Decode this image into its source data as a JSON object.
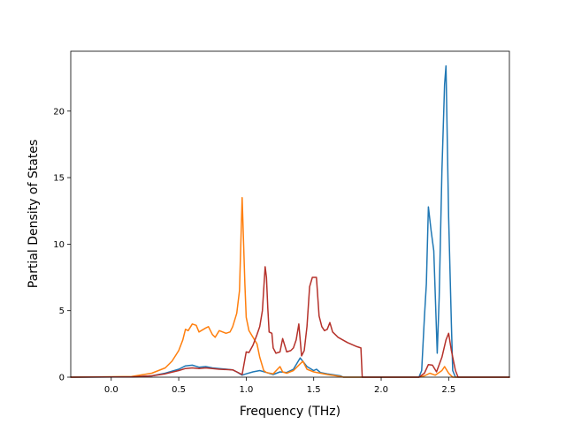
{
  "chart_data": {
    "type": "line",
    "title": "",
    "xlabel": "Frequency (THz)",
    "ylabel": "Partial Density of States",
    "xlim": [
      -0.3,
      2.95
    ],
    "ylim": [
      0,
      24.5
    ],
    "xticks": [
      0.0,
      0.5,
      1.0,
      1.5,
      2.0,
      2.5
    ],
    "xtick_labels": [
      "0.0",
      "0.5",
      "1.0",
      "1.5",
      "2.0",
      "2.5"
    ],
    "yticks": [
      0,
      5,
      10,
      15,
      20
    ],
    "ytick_labels": [
      "0",
      "5",
      "10",
      "15",
      "20"
    ],
    "grid": false,
    "legend": "none",
    "series": [
      {
        "color": "#1f77b4",
        "points": [
          [
            -0.3,
            0
          ],
          [
            0.15,
            0.02
          ],
          [
            0.3,
            0.1
          ],
          [
            0.4,
            0.3
          ],
          [
            0.5,
            0.6
          ],
          [
            0.55,
            0.85
          ],
          [
            0.6,
            0.9
          ],
          [
            0.65,
            0.75
          ],
          [
            0.7,
            0.8
          ],
          [
            0.75,
            0.7
          ],
          [
            0.8,
            0.65
          ],
          [
            0.9,
            0.55
          ],
          [
            0.93,
            0.4
          ],
          [
            0.97,
            0.15
          ],
          [
            1.0,
            0.25
          ],
          [
            1.05,
            0.4
          ],
          [
            1.1,
            0.5
          ],
          [
            1.15,
            0.35
          ],
          [
            1.2,
            0.2
          ],
          [
            1.25,
            0.4
          ],
          [
            1.3,
            0.35
          ],
          [
            1.35,
            0.6
          ],
          [
            1.4,
            1.45
          ],
          [
            1.45,
            0.8
          ],
          [
            1.5,
            0.5
          ],
          [
            1.52,
            0.6
          ],
          [
            1.55,
            0.35
          ],
          [
            1.6,
            0.25
          ],
          [
            1.7,
            0.1
          ],
          [
            1.72,
            0.0
          ],
          [
            2.28,
            0.0
          ],
          [
            2.3,
            0.5
          ],
          [
            2.32,
            4.5
          ],
          [
            2.335,
            7.0
          ],
          [
            2.35,
            12.8
          ],
          [
            2.37,
            11.0
          ],
          [
            2.39,
            9.5
          ],
          [
            2.415,
            1.8
          ],
          [
            2.43,
            6.0
          ],
          [
            2.45,
            15.5
          ],
          [
            2.47,
            22.0
          ],
          [
            2.48,
            23.4
          ],
          [
            2.5,
            12.0
          ],
          [
            2.52,
            4.0
          ],
          [
            2.53,
            0.5
          ],
          [
            2.55,
            0.0
          ],
          [
            2.95,
            0.0
          ]
        ]
      },
      {
        "color": "#ff7f0e",
        "points": [
          [
            -0.3,
            0
          ],
          [
            0.15,
            0.05
          ],
          [
            0.3,
            0.3
          ],
          [
            0.4,
            0.7
          ],
          [
            0.45,
            1.2
          ],
          [
            0.5,
            2.0
          ],
          [
            0.53,
            2.8
          ],
          [
            0.55,
            3.6
          ],
          [
            0.57,
            3.5
          ],
          [
            0.6,
            4.0
          ],
          [
            0.63,
            3.9
          ],
          [
            0.65,
            3.4
          ],
          [
            0.7,
            3.7
          ],
          [
            0.72,
            3.8
          ],
          [
            0.75,
            3.2
          ],
          [
            0.77,
            3.0
          ],
          [
            0.8,
            3.5
          ],
          [
            0.85,
            3.3
          ],
          [
            0.88,
            3.4
          ],
          [
            0.9,
            3.8
          ],
          [
            0.93,
            4.8
          ],
          [
            0.95,
            6.5
          ],
          [
            0.97,
            13.5
          ],
          [
            0.99,
            7.0
          ],
          [
            1.0,
            4.5
          ],
          [
            1.02,
            3.5
          ],
          [
            1.05,
            3.0
          ],
          [
            1.08,
            2.5
          ],
          [
            1.1,
            1.5
          ],
          [
            1.13,
            0.5
          ],
          [
            1.15,
            0.35
          ],
          [
            1.2,
            0.25
          ],
          [
            1.25,
            0.8
          ],
          [
            1.27,
            0.4
          ],
          [
            1.3,
            0.3
          ],
          [
            1.35,
            0.5
          ],
          [
            1.4,
            1.0
          ],
          [
            1.42,
            1.2
          ],
          [
            1.45,
            0.6
          ],
          [
            1.5,
            0.4
          ],
          [
            1.55,
            0.3
          ],
          [
            1.6,
            0.2
          ],
          [
            1.7,
            0.05
          ],
          [
            1.72,
            0.0
          ],
          [
            2.28,
            0.0
          ],
          [
            2.32,
            0.1
          ],
          [
            2.36,
            0.3
          ],
          [
            2.4,
            0.15
          ],
          [
            2.45,
            0.5
          ],
          [
            2.47,
            0.8
          ],
          [
            2.5,
            0.3
          ],
          [
            2.53,
            0.0
          ],
          [
            2.95,
            0.0
          ]
        ]
      },
      {
        "color": "#b5312a",
        "points": [
          [
            -0.3,
            0
          ],
          [
            0.15,
            0.02
          ],
          [
            0.3,
            0.1
          ],
          [
            0.4,
            0.25
          ],
          [
            0.5,
            0.5
          ],
          [
            0.55,
            0.65
          ],
          [
            0.6,
            0.7
          ],
          [
            0.65,
            0.65
          ],
          [
            0.7,
            0.7
          ],
          [
            0.75,
            0.65
          ],
          [
            0.8,
            0.6
          ],
          [
            0.9,
            0.55
          ],
          [
            0.93,
            0.4
          ],
          [
            0.97,
            0.2
          ],
          [
            1.0,
            1.9
          ],
          [
            1.02,
            1.85
          ],
          [
            1.05,
            2.4
          ],
          [
            1.08,
            3.2
          ],
          [
            1.1,
            3.8
          ],
          [
            1.12,
            5.0
          ],
          [
            1.14,
            8.3
          ],
          [
            1.15,
            7.5
          ],
          [
            1.16,
            5.2
          ],
          [
            1.17,
            3.4
          ],
          [
            1.19,
            3.3
          ],
          [
            1.2,
            2.2
          ],
          [
            1.22,
            1.8
          ],
          [
            1.25,
            1.9
          ],
          [
            1.27,
            2.9
          ],
          [
            1.3,
            1.9
          ],
          [
            1.33,
            2.0
          ],
          [
            1.35,
            2.2
          ],
          [
            1.37,
            2.8
          ],
          [
            1.39,
            4.0
          ],
          [
            1.41,
            1.6
          ],
          [
            1.43,
            2.0
          ],
          [
            1.45,
            3.8
          ],
          [
            1.47,
            6.8
          ],
          [
            1.49,
            7.5
          ],
          [
            1.52,
            7.5
          ],
          [
            1.54,
            4.6
          ],
          [
            1.56,
            3.8
          ],
          [
            1.58,
            3.5
          ],
          [
            1.6,
            3.6
          ],
          [
            1.62,
            4.1
          ],
          [
            1.64,
            3.4
          ],
          [
            1.68,
            3.0
          ],
          [
            1.75,
            2.6
          ],
          [
            1.82,
            2.3
          ],
          [
            1.85,
            2.2
          ],
          [
            1.86,
            0.0
          ],
          [
            2.28,
            0.0
          ],
          [
            2.32,
            0.3
          ],
          [
            2.35,
            0.95
          ],
          [
            2.38,
            0.9
          ],
          [
            2.41,
            0.4
          ],
          [
            2.45,
            1.5
          ],
          [
            2.48,
            2.8
          ],
          [
            2.5,
            3.3
          ],
          [
            2.52,
            2.0
          ],
          [
            2.55,
            0.5
          ],
          [
            2.57,
            0.0
          ],
          [
            2.95,
            0.0
          ]
        ]
      }
    ]
  }
}
